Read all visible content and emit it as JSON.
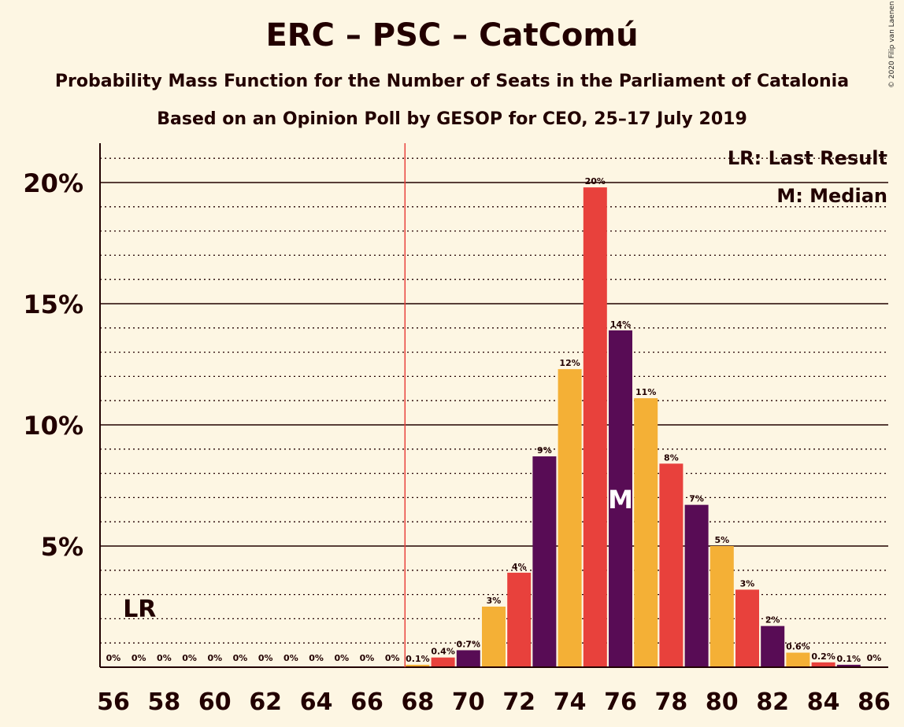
{
  "title": "ERC – PSC – CatComú",
  "subtitle": "Probability Mass Function for the Number of Seats in the Parliament of Catalonia",
  "subtitle2": "Based on an Opinion Poll by GESOP for CEO, 25–17 July 2019",
  "credit": "© 2020 Filip van Laenen",
  "legend": {
    "lr": "LR: Last Result",
    "median": "M: Median"
  },
  "markers": {
    "lr_label": "LR",
    "median_label": "M"
  },
  "colors": [
    "#f4b036",
    "#e8413c",
    "#580c55"
  ],
  "chart_data": {
    "type": "bar",
    "title": "ERC – PSC – CatComú",
    "xlabel": "",
    "ylabel": "",
    "ylim": [
      0,
      21.5
    ],
    "y_ticks": [
      {
        "value": 5,
        "label": "5%"
      },
      {
        "value": 10,
        "label": "10%"
      },
      {
        "value": 15,
        "label": "15%"
      },
      {
        "value": 20,
        "label": "20%"
      }
    ],
    "x_ticks": [
      56,
      58,
      60,
      62,
      64,
      66,
      68,
      70,
      72,
      74,
      76,
      78,
      80,
      82,
      84,
      86
    ],
    "categories": [
      56,
      57,
      58,
      59,
      60,
      61,
      62,
      63,
      64,
      65,
      66,
      67,
      68,
      69,
      70,
      71,
      72,
      73,
      74,
      75,
      76,
      77,
      78,
      79,
      80,
      81,
      82,
      83,
      84,
      85,
      86
    ],
    "values": [
      0,
      0,
      0,
      0,
      0,
      0,
      0,
      0,
      0,
      0,
      0,
      0,
      0.1,
      0.4,
      0.7,
      2.5,
      3.9,
      8.7,
      12.3,
      19.8,
      13.9,
      11.1,
      8.4,
      6.7,
      5.0,
      3.2,
      1.7,
      0.6,
      0.2,
      0.1,
      0
    ],
    "labels": [
      "0%",
      "0%",
      "0%",
      "0%",
      "0%",
      "0%",
      "0%",
      "0%",
      "0%",
      "0%",
      "0%",
      "0%",
      "0.1%",
      "0.4%",
      "0.7%",
      "3%",
      "4%",
      "9%",
      "12%",
      "20%",
      "14%",
      "11%",
      "8%",
      "7%",
      "5%",
      "3%",
      "2%",
      "0.6%",
      "0.2%",
      "0.1%",
      "0%"
    ],
    "last_result": 67.5,
    "median": 76,
    "lr_label_seat": 57
  }
}
